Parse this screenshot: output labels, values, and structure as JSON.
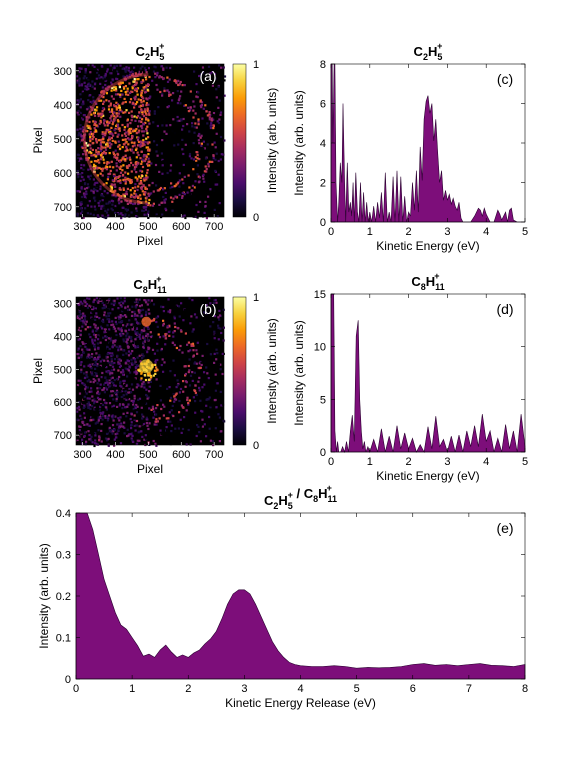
{
  "colors": {
    "fill": "#7d0e7a",
    "edge": "#2a0030",
    "image_bg": "#000000",
    "colormap": [
      "#000004",
      "#1b0c41",
      "#4a0c6b",
      "#781c6d",
      "#a52c60",
      "#cf4446",
      "#ed6925",
      "#fb9b06",
      "#f7d13d",
      "#fcffa4"
    ]
  },
  "chart_data": [
    {
      "id": "a",
      "type": "heatmap",
      "panel_label": "(a)",
      "title": {
        "base": "C",
        "sub1": "2",
        "mid": "H",
        "sub2": "5",
        "sup": "+"
      },
      "xlabel": "Pixel",
      "ylabel": "Pixel",
      "xlim": [
        280,
        730
      ],
      "ylim": [
        280,
        730
      ],
      "xticks": [
        "300",
        "400",
        "500",
        "600",
        "700"
      ],
      "yticks": [
        "300",
        "400",
        "500",
        "600",
        "700"
      ],
      "colorbar": {
        "label": "Intensity (arb. units)",
        "ticks": [
          "0",
          "1"
        ],
        "range": [
          0,
          1
        ]
      },
      "rings": [
        {
          "radius": 195,
          "left_half": true
        },
        {
          "radius": 195,
          "right_half": true
        },
        {
          "radius": 155,
          "right_half": true
        }
      ],
      "center": [
        500,
        500
      ]
    },
    {
      "id": "b",
      "type": "heatmap",
      "panel_label": "(b)",
      "title": {
        "base": "C",
        "sub1": "8",
        "mid": "H",
        "sub2": "11",
        "sup": "+"
      },
      "xlabel": "Pixel",
      "ylabel": "Pixel",
      "xlim": [
        280,
        730
      ],
      "ylim": [
        280,
        730
      ],
      "xticks": [
        "300",
        "400",
        "500",
        "600",
        "700"
      ],
      "yticks": [
        "300",
        "400",
        "500",
        "600",
        "700"
      ],
      "colorbar": {
        "label": "Intensity (arb. units)",
        "ticks": [
          "0",
          "1"
        ],
        "range": [
          0,
          1
        ]
      },
      "rings": [
        {
          "radius": 150,
          "right_half": true
        },
        {
          "radius": 115,
          "right_half": true
        }
      ],
      "center": [
        500,
        500
      ]
    },
    {
      "id": "c",
      "type": "area",
      "panel_label": "(c)",
      "title": {
        "base": "C",
        "sub1": "2",
        "mid": "H",
        "sub2": "5",
        "sup": "+"
      },
      "xlabel": "Kinetic Energy (eV)",
      "ylabel": "Intensity (arb. units)",
      "xlim": [
        0,
        5
      ],
      "ylim": [
        0,
        8
      ],
      "xticks": [
        0,
        1,
        2,
        3,
        4,
        5
      ],
      "yticks": [
        0,
        2,
        4,
        6,
        8
      ],
      "x": [
        0,
        0.03,
        0.05,
        0.08,
        0.1,
        0.13,
        0.17,
        0.2,
        0.24,
        0.28,
        0.31,
        0.35,
        0.38,
        0.42,
        0.46,
        0.5,
        0.53,
        0.57,
        0.6,
        0.64,
        0.68,
        0.72,
        0.76,
        0.8,
        0.84,
        0.88,
        0.92,
        0.96,
        1.0,
        1.05,
        1.1,
        1.15,
        1.2,
        1.25,
        1.3,
        1.35,
        1.4,
        1.45,
        1.5,
        1.55,
        1.6,
        1.65,
        1.7,
        1.75,
        1.8,
        1.85,
        1.9,
        1.95,
        2.0,
        2.05,
        2.1,
        2.15,
        2.2,
        2.25,
        2.3,
        2.35,
        2.4,
        2.45,
        2.5,
        2.55,
        2.6,
        2.65,
        2.7,
        2.75,
        2.8,
        2.85,
        2.9,
        2.95,
        3.0,
        3.05,
        3.1,
        3.15,
        3.2,
        3.25,
        3.3,
        3.35,
        3.4,
        3.5,
        3.6,
        3.7,
        3.8,
        3.85,
        3.9,
        3.95,
        4.0,
        4.1,
        4.2,
        4.3,
        4.35,
        4.4,
        4.5,
        4.55,
        4.6,
        4.65,
        4.7,
        4.8,
        4.9,
        5.0
      ],
      "values": [
        8,
        8,
        4,
        8,
        8,
        2,
        0,
        1,
        3,
        2,
        6,
        2,
        0,
        3,
        0.5,
        1,
        0.3,
        2,
        0,
        2.5,
        0.5,
        0,
        2,
        0,
        1.5,
        0,
        1,
        0,
        0.5,
        0,
        0.8,
        0,
        1,
        0.2,
        1.5,
        0,
        2.5,
        0,
        0.5,
        0,
        2.3,
        0,
        2.6,
        0,
        2.3,
        0,
        1.3,
        0,
        0.5,
        0.3,
        2,
        0.6,
        2.6,
        0.5,
        3.8,
        2.1,
        5.2,
        6.1,
        6.4,
        5.5,
        6.0,
        4.1,
        5.2,
        3.5,
        2.0,
        2.6,
        1.1,
        1.6,
        1.1,
        1.4,
        0.9,
        1.2,
        0.8,
        0.6,
        1.0,
        0.2,
        0,
        0,
        0,
        0.3,
        0.7,
        0.6,
        0.3,
        0.7,
        0.4,
        0,
        0,
        0.6,
        0.4,
        0.1,
        0.5,
        0,
        0.6,
        0.7,
        0.1,
        0,
        0,
        0
      ]
    },
    {
      "id": "d",
      "type": "area",
      "panel_label": "(d)",
      "title": {
        "base": "C",
        "sub1": "8",
        "mid": "H",
        "sub2": "11",
        "sup": "+"
      },
      "xlabel": "Kinetic Energy (eV)",
      "ylabel": "Intensity (arb. units)",
      "xlim": [
        0,
        5
      ],
      "ylim": [
        0,
        15
      ],
      "xticks": [
        0,
        1,
        2,
        3,
        4,
        5
      ],
      "yticks": [
        0,
        5,
        10,
        15
      ],
      "x": [
        0,
        0.03,
        0.07,
        0.1,
        0.14,
        0.17,
        0.2,
        0.25,
        0.3,
        0.35,
        0.4,
        0.45,
        0.5,
        0.55,
        0.6,
        0.65,
        0.7,
        0.74,
        0.78,
        0.82,
        0.86,
        0.9,
        0.95,
        1.0,
        1.1,
        1.2,
        1.3,
        1.4,
        1.5,
        1.6,
        1.7,
        1.8,
        1.9,
        2.0,
        2.1,
        2.2,
        2.3,
        2.4,
        2.5,
        2.6,
        2.7,
        2.8,
        2.9,
        3.0,
        3.1,
        3.2,
        3.3,
        3.4,
        3.5,
        3.6,
        3.7,
        3.8,
        3.9,
        4.0,
        4.1,
        4.2,
        4.3,
        4.4,
        4.5,
        4.6,
        4.7,
        4.8,
        4.9,
        5.0
      ],
      "values": [
        15,
        15,
        15,
        2,
        0,
        1,
        0,
        0,
        0.5,
        0,
        1,
        0,
        2,
        3.5,
        1,
        11,
        12.5,
        5,
        2,
        0.3,
        1,
        0,
        0.5,
        0,
        1.2,
        0,
        2.2,
        0,
        1.5,
        0,
        2.5,
        0.3,
        1.8,
        0.3,
        1.3,
        0,
        0.7,
        0,
        2.4,
        0.3,
        3.4,
        0.5,
        1.2,
        0,
        1.5,
        0,
        1.6,
        0,
        2,
        0.5,
        2.5,
        0.5,
        3.6,
        1,
        2,
        0,
        1.3,
        0,
        2.6,
        0.3,
        2,
        0,
        3.6,
        0.5
      ]
    },
    {
      "id": "e",
      "type": "area",
      "panel_label": "(e)",
      "title": {
        "base": "C",
        "sub1": "2",
        "mid": "H",
        "sub2": "5",
        "sup": "+",
        "sep": " / ",
        "base2": "C",
        "sub3": "8",
        "mid2": "H",
        "sub4": "11",
        "sup2": "+"
      },
      "xlabel": "Kinetic Energy Release (eV)",
      "ylabel": "Intensity (arb. units)",
      "xlim": [
        0,
        8
      ],
      "ylim": [
        0,
        0.4
      ],
      "xticks": [
        0,
        1,
        2,
        3,
        4,
        5,
        6,
        7,
        8
      ],
      "yticks": [
        0,
        0.1,
        0.2,
        0.3,
        0.4
      ],
      "ytick_labels": [
        "0",
        "0.1",
        "0.2",
        "0.3",
        "0.4"
      ],
      "x": [
        0,
        0.1,
        0.2,
        0.3,
        0.4,
        0.5,
        0.6,
        0.7,
        0.8,
        0.9,
        1.0,
        1.1,
        1.2,
        1.3,
        1.4,
        1.5,
        1.6,
        1.7,
        1.8,
        1.9,
        2.0,
        2.1,
        2.2,
        2.3,
        2.4,
        2.5,
        2.6,
        2.7,
        2.8,
        2.9,
        3.0,
        3.1,
        3.2,
        3.3,
        3.4,
        3.5,
        3.6,
        3.7,
        3.8,
        3.9,
        4.0,
        4.2,
        4.4,
        4.6,
        4.8,
        5.0,
        5.2,
        5.4,
        5.6,
        5.8,
        6.0,
        6.2,
        6.4,
        6.6,
        6.8,
        7.0,
        7.2,
        7.4,
        7.6,
        7.8,
        8.0
      ],
      "values": [
        0.4,
        0.4,
        0.4,
        0.36,
        0.3,
        0.24,
        0.2,
        0.16,
        0.13,
        0.12,
        0.1,
        0.08,
        0.055,
        0.06,
        0.052,
        0.07,
        0.082,
        0.065,
        0.052,
        0.058,
        0.052,
        0.063,
        0.07,
        0.085,
        0.097,
        0.115,
        0.145,
        0.18,
        0.205,
        0.215,
        0.215,
        0.205,
        0.18,
        0.15,
        0.12,
        0.09,
        0.068,
        0.052,
        0.04,
        0.035,
        0.032,
        0.03,
        0.03,
        0.032,
        0.03,
        0.026,
        0.028,
        0.027,
        0.028,
        0.03,
        0.035,
        0.037,
        0.033,
        0.035,
        0.032,
        0.035,
        0.037,
        0.033,
        0.032,
        0.03,
        0.035
      ]
    }
  ]
}
